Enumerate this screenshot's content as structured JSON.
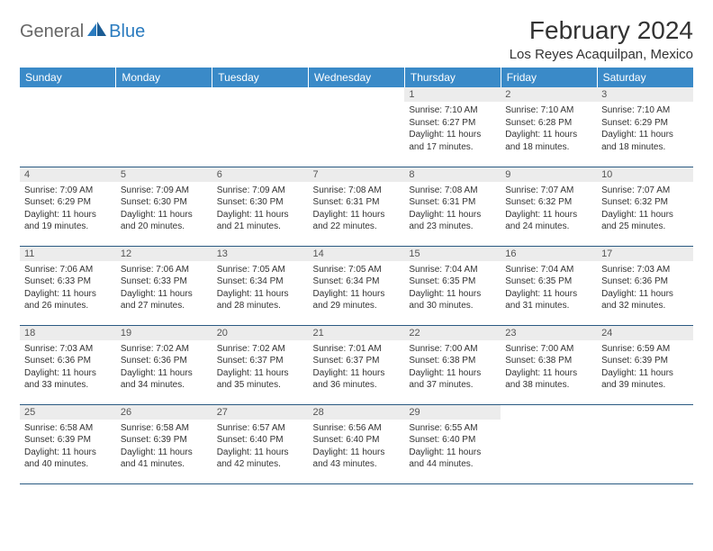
{
  "brand": {
    "word1": "General",
    "word2": "Blue"
  },
  "title": "February 2024",
  "location": "Los Reyes Acaquilpan, Mexico",
  "colors": {
    "header_bg": "#3a8ac8",
    "header_fg": "#ffffff",
    "daynum_bg": "#ececec",
    "rule": "#2a5a82",
    "brand_blue": "#2a7bbf",
    "brand_gray": "#666666",
    "text": "#333333"
  },
  "weekdays": [
    "Sunday",
    "Monday",
    "Tuesday",
    "Wednesday",
    "Thursday",
    "Friday",
    "Saturday"
  ],
  "weeks": [
    [
      null,
      null,
      null,
      null,
      {
        "n": "1",
        "sr": "Sunrise: 7:10 AM",
        "ss": "Sunset: 6:27 PM",
        "d1": "Daylight: 11 hours",
        "d2": "and 17 minutes."
      },
      {
        "n": "2",
        "sr": "Sunrise: 7:10 AM",
        "ss": "Sunset: 6:28 PM",
        "d1": "Daylight: 11 hours",
        "d2": "and 18 minutes."
      },
      {
        "n": "3",
        "sr": "Sunrise: 7:10 AM",
        "ss": "Sunset: 6:29 PM",
        "d1": "Daylight: 11 hours",
        "d2": "and 18 minutes."
      }
    ],
    [
      {
        "n": "4",
        "sr": "Sunrise: 7:09 AM",
        "ss": "Sunset: 6:29 PM",
        "d1": "Daylight: 11 hours",
        "d2": "and 19 minutes."
      },
      {
        "n": "5",
        "sr": "Sunrise: 7:09 AM",
        "ss": "Sunset: 6:30 PM",
        "d1": "Daylight: 11 hours",
        "d2": "and 20 minutes."
      },
      {
        "n": "6",
        "sr": "Sunrise: 7:09 AM",
        "ss": "Sunset: 6:30 PM",
        "d1": "Daylight: 11 hours",
        "d2": "and 21 minutes."
      },
      {
        "n": "7",
        "sr": "Sunrise: 7:08 AM",
        "ss": "Sunset: 6:31 PM",
        "d1": "Daylight: 11 hours",
        "d2": "and 22 minutes."
      },
      {
        "n": "8",
        "sr": "Sunrise: 7:08 AM",
        "ss": "Sunset: 6:31 PM",
        "d1": "Daylight: 11 hours",
        "d2": "and 23 minutes."
      },
      {
        "n": "9",
        "sr": "Sunrise: 7:07 AM",
        "ss": "Sunset: 6:32 PM",
        "d1": "Daylight: 11 hours",
        "d2": "and 24 minutes."
      },
      {
        "n": "10",
        "sr": "Sunrise: 7:07 AM",
        "ss": "Sunset: 6:32 PM",
        "d1": "Daylight: 11 hours",
        "d2": "and 25 minutes."
      }
    ],
    [
      {
        "n": "11",
        "sr": "Sunrise: 7:06 AM",
        "ss": "Sunset: 6:33 PM",
        "d1": "Daylight: 11 hours",
        "d2": "and 26 minutes."
      },
      {
        "n": "12",
        "sr": "Sunrise: 7:06 AM",
        "ss": "Sunset: 6:33 PM",
        "d1": "Daylight: 11 hours",
        "d2": "and 27 minutes."
      },
      {
        "n": "13",
        "sr": "Sunrise: 7:05 AM",
        "ss": "Sunset: 6:34 PM",
        "d1": "Daylight: 11 hours",
        "d2": "and 28 minutes."
      },
      {
        "n": "14",
        "sr": "Sunrise: 7:05 AM",
        "ss": "Sunset: 6:34 PM",
        "d1": "Daylight: 11 hours",
        "d2": "and 29 minutes."
      },
      {
        "n": "15",
        "sr": "Sunrise: 7:04 AM",
        "ss": "Sunset: 6:35 PM",
        "d1": "Daylight: 11 hours",
        "d2": "and 30 minutes."
      },
      {
        "n": "16",
        "sr": "Sunrise: 7:04 AM",
        "ss": "Sunset: 6:35 PM",
        "d1": "Daylight: 11 hours",
        "d2": "and 31 minutes."
      },
      {
        "n": "17",
        "sr": "Sunrise: 7:03 AM",
        "ss": "Sunset: 6:36 PM",
        "d1": "Daylight: 11 hours",
        "d2": "and 32 minutes."
      }
    ],
    [
      {
        "n": "18",
        "sr": "Sunrise: 7:03 AM",
        "ss": "Sunset: 6:36 PM",
        "d1": "Daylight: 11 hours",
        "d2": "and 33 minutes."
      },
      {
        "n": "19",
        "sr": "Sunrise: 7:02 AM",
        "ss": "Sunset: 6:36 PM",
        "d1": "Daylight: 11 hours",
        "d2": "and 34 minutes."
      },
      {
        "n": "20",
        "sr": "Sunrise: 7:02 AM",
        "ss": "Sunset: 6:37 PM",
        "d1": "Daylight: 11 hours",
        "d2": "and 35 minutes."
      },
      {
        "n": "21",
        "sr": "Sunrise: 7:01 AM",
        "ss": "Sunset: 6:37 PM",
        "d1": "Daylight: 11 hours",
        "d2": "and 36 minutes."
      },
      {
        "n": "22",
        "sr": "Sunrise: 7:00 AM",
        "ss": "Sunset: 6:38 PM",
        "d1": "Daylight: 11 hours",
        "d2": "and 37 minutes."
      },
      {
        "n": "23",
        "sr": "Sunrise: 7:00 AM",
        "ss": "Sunset: 6:38 PM",
        "d1": "Daylight: 11 hours",
        "d2": "and 38 minutes."
      },
      {
        "n": "24",
        "sr": "Sunrise: 6:59 AM",
        "ss": "Sunset: 6:39 PM",
        "d1": "Daylight: 11 hours",
        "d2": "and 39 minutes."
      }
    ],
    [
      {
        "n": "25",
        "sr": "Sunrise: 6:58 AM",
        "ss": "Sunset: 6:39 PM",
        "d1": "Daylight: 11 hours",
        "d2": "and 40 minutes."
      },
      {
        "n": "26",
        "sr": "Sunrise: 6:58 AM",
        "ss": "Sunset: 6:39 PM",
        "d1": "Daylight: 11 hours",
        "d2": "and 41 minutes."
      },
      {
        "n": "27",
        "sr": "Sunrise: 6:57 AM",
        "ss": "Sunset: 6:40 PM",
        "d1": "Daylight: 11 hours",
        "d2": "and 42 minutes."
      },
      {
        "n": "28",
        "sr": "Sunrise: 6:56 AM",
        "ss": "Sunset: 6:40 PM",
        "d1": "Daylight: 11 hours",
        "d2": "and 43 minutes."
      },
      {
        "n": "29",
        "sr": "Sunrise: 6:55 AM",
        "ss": "Sunset: 6:40 PM",
        "d1": "Daylight: 11 hours",
        "d2": "and 44 minutes."
      },
      null,
      null
    ]
  ]
}
